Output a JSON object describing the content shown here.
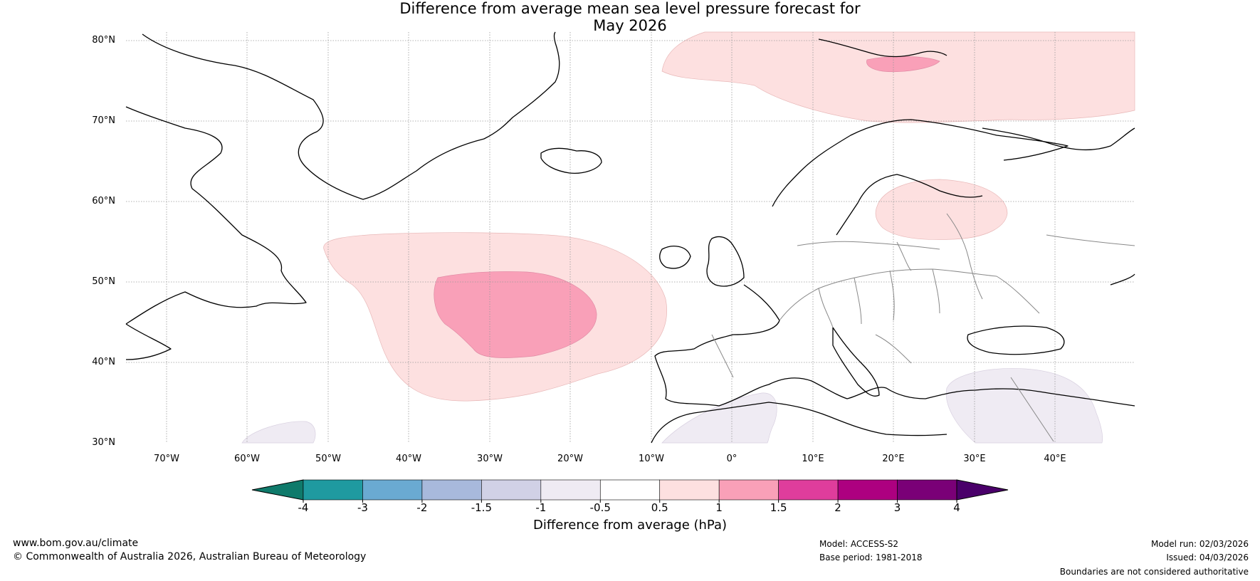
{
  "title": {
    "line1": "Difference from average mean sea level pressure forecast for",
    "line2": "May 2026"
  },
  "map": {
    "lat_labels": [
      "80°N",
      "70°N",
      "60°N",
      "50°N",
      "40°N",
      "30°N"
    ],
    "lon_labels": [
      "70°W",
      "60°W",
      "50°W",
      "40°W",
      "30°W",
      "20°W",
      "10°W",
      "0°",
      "10°E",
      "20°E",
      "30°E",
      "40°E"
    ],
    "anomaly_regions": [
      {
        "name": "north-atlantic-low-anomaly-outer",
        "category": "0.5 to 1"
      },
      {
        "name": "north-atlantic-low-anomaly-inner",
        "category": "1 to 1.5"
      },
      {
        "name": "barents-sea-anomaly-outer",
        "category": "0.5 to 1"
      },
      {
        "name": "svalbard-anomaly-inner",
        "category": "1 to 1.5"
      },
      {
        "name": "baltic-anomaly",
        "category": "0.5 to 1"
      },
      {
        "name": "eastern-med-anomaly",
        "category": "-1 to -0.5"
      },
      {
        "name": "north-africa-anomaly",
        "category": "-1 to -0.5"
      },
      {
        "name": "southwest-atlantic-anomaly",
        "category": "-1 to -0.5"
      }
    ]
  },
  "colorbar": {
    "colors": [
      "#0f7a6b",
      "#1f9aa0",
      "#6aaad2",
      "#a8b9dc",
      "#d1d1e6",
      "#efebf3",
      "#ffffff",
      "#fde0e0",
      "#f9a0b8",
      "#df3d9c",
      "#ad0080",
      "#7a0077",
      "#4a006a"
    ],
    "ticks": [
      "-4",
      "-3",
      "-2",
      "-1.5",
      "-1",
      "-0.5",
      "0.5",
      "1",
      "1.5",
      "2",
      "3",
      "4"
    ],
    "label": "Difference from average (hPa)"
  },
  "footer": {
    "website": "www.bom.gov.au/climate",
    "copyright": "© Commonwealth of Australia 2026, Australian Bureau of Meteorology",
    "model": "Model: ACCESS-S2",
    "base_period": "Base period: 1981-2018",
    "model_run": "Model run: 02/03/2026",
    "issued": "Issued: 04/03/2026",
    "disclaimer": "Boundaries are not considered authoritative"
  }
}
